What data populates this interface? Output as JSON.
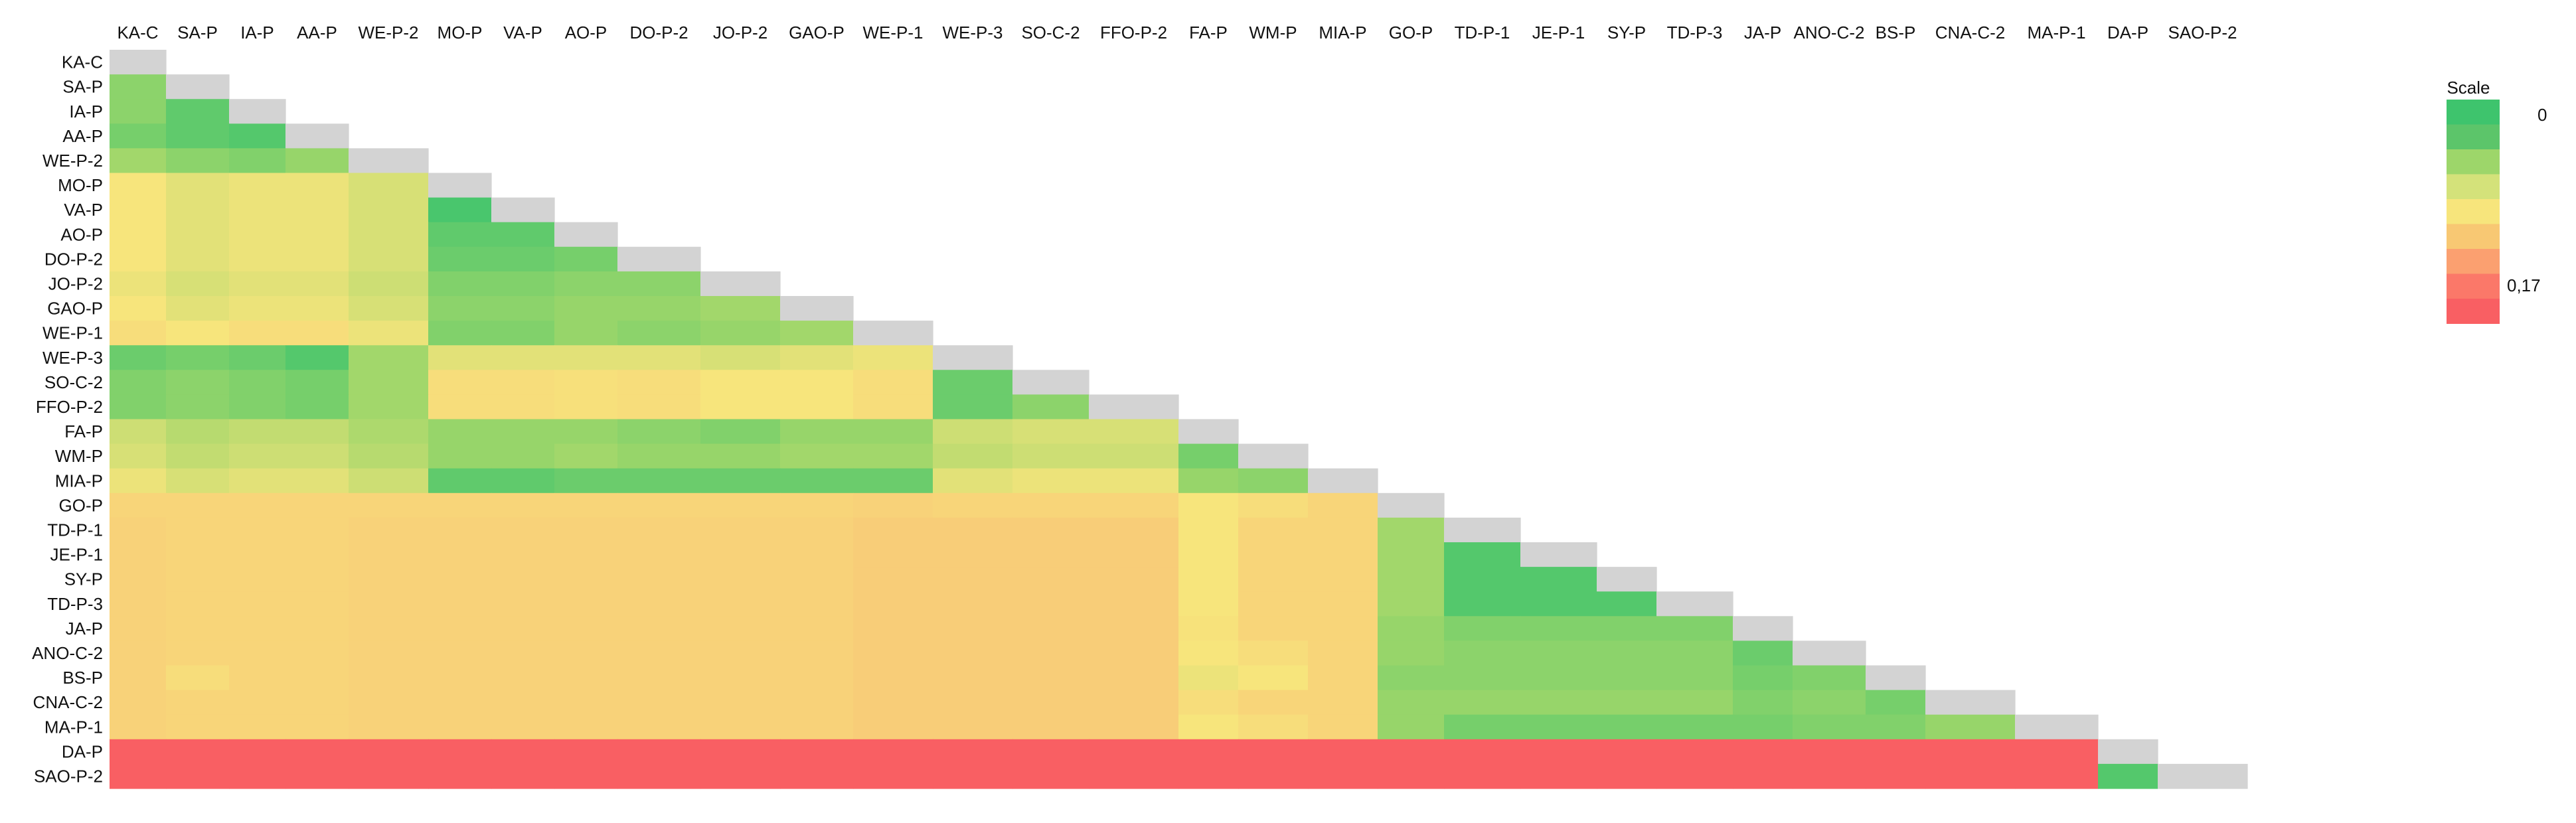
{
  "chart_data": {
    "type": "heatmap",
    "title": "",
    "labels": [
      "KA-C",
      "SA-P",
      "IA-P",
      "AA-P",
      "WE-P-2",
      "MO-P",
      "VA-P",
      "AO-P",
      "DO-P-2",
      "JO-P-2",
      "GAO-P",
      "WE-P-1",
      "WE-P-3",
      "SO-C-2",
      "FFO-P-2",
      "FA-P",
      "WM-P",
      "MIA-P",
      "GO-P",
      "TD-P-1",
      "JE-P-1",
      "SY-P",
      "TD-P-3",
      "JA-P",
      "ANO-C-2",
      "BS-P",
      "CNA-C-2",
      "MA-P-1",
      "DA-P",
      "SAO-P-2"
    ],
    "triangle": "lower",
    "diagonal_color": "#d3d3d3",
    "value_range": [
      0,
      0.17
    ],
    "scale": {
      "title": "Scale",
      "min_label": "0",
      "max_label": "0,17",
      "colors": [
        "#3ec46d",
        "#5cc56a",
        "#9dd66a",
        "#d4e27a",
        "#f7e57c",
        "#f8c873",
        "#fba070",
        "#fb7869",
        "#f95f63"
      ]
    },
    "matrix": [
      [],
      [
        0.035
      ],
      [
        0.035,
        0.015
      ],
      [
        0.025,
        0.015,
        0.01
      ],
      [
        0.045,
        0.035,
        0.03,
        0.04
      ],
      [
        0.085,
        0.075,
        0.08,
        0.08,
        0.07
      ],
      [
        0.085,
        0.075,
        0.08,
        0.08,
        0.07,
        0.005
      ],
      [
        0.085,
        0.075,
        0.08,
        0.08,
        0.07,
        0.015,
        0.015
      ],
      [
        0.085,
        0.075,
        0.08,
        0.08,
        0.07,
        0.02,
        0.02,
        0.025
      ],
      [
        0.08,
        0.07,
        0.075,
        0.075,
        0.065,
        0.03,
        0.03,
        0.035,
        0.035
      ],
      [
        0.085,
        0.075,
        0.08,
        0.08,
        0.07,
        0.035,
        0.035,
        0.04,
        0.04,
        0.045
      ],
      [
        0.09,
        0.085,
        0.09,
        0.09,
        0.08,
        0.03,
        0.03,
        0.04,
        0.035,
        0.04,
        0.045
      ],
      [
        0.02,
        0.025,
        0.02,
        0.01,
        0.045,
        0.075,
        0.075,
        0.075,
        0.075,
        0.07,
        0.075,
        0.08
      ],
      [
        0.03,
        0.035,
        0.03,
        0.025,
        0.045,
        0.09,
        0.09,
        0.088,
        0.09,
        0.085,
        0.085,
        0.09,
        0.02
      ],
      [
        0.03,
        0.035,
        0.03,
        0.025,
        0.045,
        0.09,
        0.09,
        0.088,
        0.09,
        0.085,
        0.085,
        0.09,
        0.02,
        0.035
      ],
      [
        0.065,
        0.055,
        0.06,
        0.06,
        0.05,
        0.04,
        0.04,
        0.04,
        0.035,
        0.03,
        0.04,
        0.04,
        0.065,
        0.07,
        0.07
      ],
      [
        0.07,
        0.06,
        0.065,
        0.065,
        0.055,
        0.04,
        0.04,
        0.045,
        0.04,
        0.04,
        0.045,
        0.045,
        0.06,
        0.065,
        0.065,
        0.025
      ],
      [
        0.08,
        0.07,
        0.075,
        0.075,
        0.065,
        0.015,
        0.015,
        0.02,
        0.02,
        0.02,
        0.02,
        0.02,
        0.075,
        0.08,
        0.08,
        0.04,
        0.035
      ],
      [
        0.095,
        0.095,
        0.095,
        0.095,
        0.095,
        0.095,
        0.095,
        0.095,
        0.095,
        0.095,
        0.095,
        0.097,
        0.095,
        0.095,
        0.095,
        0.085,
        0.09,
        0.095
      ],
      [
        0.097,
        0.095,
        0.095,
        0.095,
        0.097,
        0.097,
        0.097,
        0.097,
        0.097,
        0.097,
        0.097,
        0.1,
        0.1,
        0.1,
        0.1,
        0.085,
        0.095,
        0.095,
        0.045
      ],
      [
        0.097,
        0.095,
        0.095,
        0.095,
        0.097,
        0.097,
        0.097,
        0.097,
        0.097,
        0.097,
        0.097,
        0.1,
        0.1,
        0.1,
        0.1,
        0.085,
        0.095,
        0.095,
        0.045,
        0.01
      ],
      [
        0.097,
        0.095,
        0.095,
        0.095,
        0.097,
        0.097,
        0.097,
        0.097,
        0.097,
        0.097,
        0.097,
        0.1,
        0.1,
        0.1,
        0.1,
        0.085,
        0.095,
        0.095,
        0.045,
        0.01,
        0.01
      ],
      [
        0.097,
        0.095,
        0.095,
        0.095,
        0.097,
        0.097,
        0.097,
        0.097,
        0.097,
        0.097,
        0.097,
        0.1,
        0.1,
        0.1,
        0.1,
        0.085,
        0.095,
        0.095,
        0.045,
        0.01,
        0.01,
        0.01
      ],
      [
        0.097,
        0.095,
        0.095,
        0.095,
        0.097,
        0.097,
        0.097,
        0.097,
        0.097,
        0.097,
        0.097,
        0.1,
        0.1,
        0.1,
        0.1,
        0.087,
        0.095,
        0.095,
        0.04,
        0.03,
        0.03,
        0.03,
        0.03
      ],
      [
        0.097,
        0.095,
        0.095,
        0.095,
        0.097,
        0.097,
        0.097,
        0.097,
        0.097,
        0.097,
        0.097,
        0.1,
        0.1,
        0.1,
        0.1,
        0.085,
        0.09,
        0.095,
        0.04,
        0.035,
        0.035,
        0.035,
        0.035,
        0.02
      ],
      [
        0.097,
        0.09,
        0.095,
        0.095,
        0.097,
        0.097,
        0.097,
        0.097,
        0.097,
        0.097,
        0.097,
        0.1,
        0.1,
        0.1,
        0.1,
        0.08,
        0.085,
        0.095,
        0.035,
        0.035,
        0.035,
        0.035,
        0.035,
        0.025,
        0.03
      ],
      [
        0.097,
        0.095,
        0.095,
        0.095,
        0.097,
        0.097,
        0.097,
        0.097,
        0.097,
        0.097,
        0.097,
        0.1,
        0.1,
        0.1,
        0.1,
        0.09,
        0.095,
        0.095,
        0.04,
        0.04,
        0.04,
        0.04,
        0.04,
        0.03,
        0.035,
        0.025
      ],
      [
        0.097,
        0.095,
        0.095,
        0.095,
        0.097,
        0.097,
        0.097,
        0.097,
        0.097,
        0.097,
        0.097,
        0.1,
        0.1,
        0.1,
        0.1,
        0.085,
        0.09,
        0.095,
        0.04,
        0.025,
        0.025,
        0.025,
        0.025,
        0.025,
        0.03,
        0.03,
        0.04
      ],
      [
        0.17,
        0.17,
        0.17,
        0.17,
        0.17,
        0.17,
        0.17,
        0.17,
        0.17,
        0.17,
        0.17,
        0.17,
        0.17,
        0.17,
        0.17,
        0.17,
        0.17,
        0.17,
        0.17,
        0.17,
        0.17,
        0.17,
        0.17,
        0.17,
        0.17,
        0.17,
        0.17,
        0.17
      ],
      [
        0.17,
        0.17,
        0.17,
        0.17,
        0.17,
        0.17,
        0.17,
        0.17,
        0.17,
        0.17,
        0.17,
        0.17,
        0.17,
        0.17,
        0.17,
        0.17,
        0.17,
        0.17,
        0.17,
        0.17,
        0.17,
        0.17,
        0.17,
        0.17,
        0.17,
        0.17,
        0.17,
        0.17,
        0.01
      ]
    ]
  }
}
